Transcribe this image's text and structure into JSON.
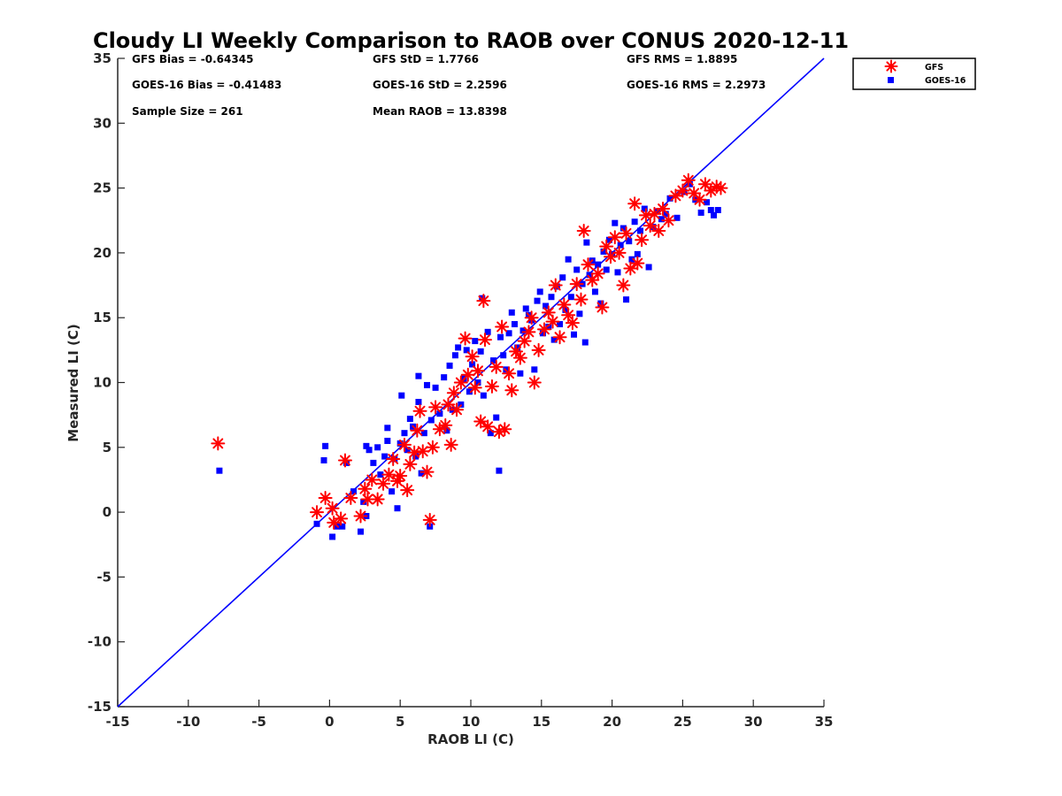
{
  "chart_data": {
    "type": "scatter",
    "title": "Cloudy LI Weekly Comparison to RAOB over CONUS 2020-12-11",
    "xlabel": "RAOB LI (C)",
    "ylabel": "Measured LI (C)",
    "xlim": [
      -15,
      35
    ],
    "ylim": [
      -15,
      35
    ],
    "xticks": [
      -15,
      -10,
      -5,
      0,
      5,
      10,
      15,
      20,
      25,
      30,
      35
    ],
    "yticks": [
      -15,
      -10,
      -5,
      0,
      5,
      10,
      15,
      20,
      25,
      30,
      35
    ],
    "grid": false,
    "legend_position": "top-right-outside",
    "reference_line": {
      "x": [
        -15,
        35
      ],
      "y": [
        -15,
        35
      ],
      "color": "#0000ff"
    },
    "stats": {
      "gfs_bias": "GFS Bias = -0.64345",
      "goes_bias": "GOES-16 Bias = -0.41483",
      "sample_size": "Sample Size = 261",
      "gfs_std": "GFS StD = 1.7766",
      "goes_std": "GOES-16 StD = 2.2596",
      "mean_raob": "Mean RAOB = 13.8398",
      "gfs_rms": "GFS RMS = 1.8895",
      "goes_rms": "GOES-16 RMS = 2.2973"
    },
    "series": [
      {
        "name": "GFS",
        "marker": "asterisk",
        "color": "#ff0000",
        "points": [
          [
            -7.9,
            5.3
          ],
          [
            -0.9,
            0.0
          ],
          [
            -0.3,
            1.1
          ],
          [
            0.2,
            0.3
          ],
          [
            0.3,
            -0.8
          ],
          [
            0.8,
            -0.5
          ],
          [
            1.1,
            4.0
          ],
          [
            1.5,
            1.1
          ],
          [
            2.2,
            -0.3
          ],
          [
            2.5,
            1.8
          ],
          [
            2.7,
            1.0
          ],
          [
            3.0,
            2.5
          ],
          [
            3.4,
            1.0
          ],
          [
            3.8,
            2.2
          ],
          [
            4.2,
            2.9
          ],
          [
            4.5,
            4.1
          ],
          [
            4.8,
            2.4
          ],
          [
            5.0,
            2.8
          ],
          [
            5.3,
            5.2
          ],
          [
            5.5,
            1.7
          ],
          [
            5.7,
            3.7
          ],
          [
            6.0,
            4.6
          ],
          [
            6.2,
            6.3
          ],
          [
            6.4,
            7.8
          ],
          [
            6.6,
            4.7
          ],
          [
            6.9,
            3.1
          ],
          [
            7.1,
            -0.6
          ],
          [
            7.3,
            5.0
          ],
          [
            7.5,
            8.1
          ],
          [
            7.8,
            6.4
          ],
          [
            8.2,
            6.7
          ],
          [
            8.4,
            8.3
          ],
          [
            8.6,
            5.2
          ],
          [
            8.8,
            9.2
          ],
          [
            9.0,
            7.9
          ],
          [
            9.3,
            10.0
          ],
          [
            9.6,
            13.4
          ],
          [
            9.8,
            10.6
          ],
          [
            10.1,
            12.0
          ],
          [
            10.3,
            9.6
          ],
          [
            10.5,
            10.9
          ],
          [
            10.7,
            7.0
          ],
          [
            10.9,
            16.3
          ],
          [
            11.0,
            13.3
          ],
          [
            11.2,
            6.6
          ],
          [
            11.5,
            9.7
          ],
          [
            11.8,
            11.2
          ],
          [
            12.0,
            6.2
          ],
          [
            12.2,
            14.3
          ],
          [
            12.4,
            6.4
          ],
          [
            12.7,
            10.7
          ],
          [
            12.9,
            9.4
          ],
          [
            13.2,
            12.4
          ],
          [
            13.5,
            11.9
          ],
          [
            13.8,
            13.2
          ],
          [
            14.1,
            13.9
          ],
          [
            14.3,
            15.0
          ],
          [
            14.5,
            10.0
          ],
          [
            14.8,
            12.5
          ],
          [
            15.2,
            14.1
          ],
          [
            15.5,
            15.4
          ],
          [
            15.8,
            14.7
          ],
          [
            16.0,
            17.5
          ],
          [
            16.3,
            13.5
          ],
          [
            16.6,
            16.0
          ],
          [
            16.9,
            15.2
          ],
          [
            17.2,
            14.6
          ],
          [
            17.5,
            17.6
          ],
          [
            17.8,
            16.4
          ],
          [
            18.0,
            21.7
          ],
          [
            18.3,
            19.1
          ],
          [
            18.6,
            17.9
          ],
          [
            19.0,
            18.4
          ],
          [
            19.3,
            15.8
          ],
          [
            19.6,
            20.5
          ],
          [
            19.9,
            19.7
          ],
          [
            20.2,
            21.2
          ],
          [
            20.5,
            20.0
          ],
          [
            20.8,
            17.5
          ],
          [
            21.0,
            21.5
          ],
          [
            21.3,
            18.8
          ],
          [
            21.6,
            23.8
          ],
          [
            21.8,
            19.2
          ],
          [
            22.1,
            21.0
          ],
          [
            22.4,
            22.9
          ],
          [
            22.7,
            22.1
          ],
          [
            23.0,
            23.0
          ],
          [
            23.3,
            21.7
          ],
          [
            23.6,
            23.4
          ],
          [
            24.0,
            22.5
          ],
          [
            24.5,
            24.4
          ],
          [
            25.0,
            24.8
          ],
          [
            25.4,
            25.6
          ],
          [
            25.8,
            24.6
          ],
          [
            26.2,
            24.1
          ],
          [
            26.6,
            25.3
          ],
          [
            27.0,
            24.8
          ],
          [
            27.4,
            25.1
          ],
          [
            27.7,
            25.0
          ]
        ]
      },
      {
        "name": "GOES-16",
        "marker": "square",
        "color": "#0000ff",
        "points": [
          [
            -7.8,
            3.2
          ],
          [
            -0.9,
            -0.9
          ],
          [
            -0.3,
            5.1
          ],
          [
            -0.4,
            4.0
          ],
          [
            0.2,
            -1.9
          ],
          [
            0.5,
            -1.1
          ],
          [
            0.9,
            -1.1
          ],
          [
            1.2,
            3.8
          ],
          [
            1.7,
            1.6
          ],
          [
            2.2,
            -1.5
          ],
          [
            2.4,
            0.8
          ],
          [
            2.6,
            -0.3
          ],
          [
            2.6,
            5.1
          ],
          [
            2.8,
            4.8
          ],
          [
            3.1,
            3.8
          ],
          [
            3.4,
            5.0
          ],
          [
            3.6,
            2.9
          ],
          [
            3.9,
            4.3
          ],
          [
            4.1,
            6.5
          ],
          [
            4.1,
            5.5
          ],
          [
            4.4,
            1.6
          ],
          [
            4.6,
            4.1
          ],
          [
            4.8,
            0.3
          ],
          [
            5.0,
            5.3
          ],
          [
            5.1,
            9.0
          ],
          [
            5.3,
            6.1
          ],
          [
            5.5,
            4.8
          ],
          [
            5.7,
            7.2
          ],
          [
            5.9,
            6.6
          ],
          [
            6.1,
            4.3
          ],
          [
            6.3,
            8.5
          ],
          [
            6.3,
            10.5
          ],
          [
            6.5,
            3.0
          ],
          [
            6.7,
            6.1
          ],
          [
            6.9,
            9.8
          ],
          [
            7.1,
            -1.1
          ],
          [
            7.2,
            7.1
          ],
          [
            7.5,
            9.6
          ],
          [
            7.8,
            7.6
          ],
          [
            8.1,
            10.4
          ],
          [
            8.3,
            6.3
          ],
          [
            8.5,
            11.3
          ],
          [
            8.7,
            7.9
          ],
          [
            8.9,
            12.1
          ],
          [
            9.1,
            12.7
          ],
          [
            9.3,
            8.3
          ],
          [
            9.5,
            10.3
          ],
          [
            9.7,
            12.5
          ],
          [
            9.9,
            9.3
          ],
          [
            10.1,
            11.4
          ],
          [
            10.3,
            13.2
          ],
          [
            10.5,
            10.0
          ],
          [
            10.7,
            12.4
          ],
          [
            10.8,
            16.5
          ],
          [
            10.9,
            9.0
          ],
          [
            11.2,
            13.9
          ],
          [
            11.4,
            6.1
          ],
          [
            11.6,
            11.7
          ],
          [
            11.8,
            7.3
          ],
          [
            12.0,
            3.2
          ],
          [
            12.1,
            13.5
          ],
          [
            12.3,
            12.1
          ],
          [
            12.5,
            11.0
          ],
          [
            12.7,
            13.8
          ],
          [
            12.9,
            15.4
          ],
          [
            13.1,
            14.5
          ],
          [
            13.3,
            12.7
          ],
          [
            13.5,
            10.7
          ],
          [
            13.7,
            14.0
          ],
          [
            13.9,
            15.7
          ],
          [
            14.1,
            15.2
          ],
          [
            14.3,
            14.8
          ],
          [
            14.5,
            11.0
          ],
          [
            14.7,
            16.3
          ],
          [
            14.9,
            17.0
          ],
          [
            15.1,
            13.8
          ],
          [
            15.3,
            15.9
          ],
          [
            15.5,
            14.3
          ],
          [
            15.7,
            16.6
          ],
          [
            15.9,
            13.3
          ],
          [
            16.1,
            17.4
          ],
          [
            16.3,
            14.5
          ],
          [
            16.5,
            18.1
          ],
          [
            16.7,
            15.6
          ],
          [
            16.9,
            19.5
          ],
          [
            17.1,
            16.6
          ],
          [
            17.3,
            13.7
          ],
          [
            17.5,
            18.7
          ],
          [
            17.7,
            15.3
          ],
          [
            17.9,
            17.6
          ],
          [
            18.1,
            13.1
          ],
          [
            18.2,
            20.8
          ],
          [
            18.4,
            18.3
          ],
          [
            18.6,
            19.4
          ],
          [
            18.8,
            17.0
          ],
          [
            19.0,
            19.1
          ],
          [
            19.2,
            16.1
          ],
          [
            19.4,
            20.1
          ],
          [
            19.6,
            18.7
          ],
          [
            19.8,
            21.0
          ],
          [
            20.0,
            19.9
          ],
          [
            20.2,
            22.3
          ],
          [
            20.4,
            18.5
          ],
          [
            20.6,
            20.6
          ],
          [
            20.8,
            21.9
          ],
          [
            21.0,
            16.4
          ],
          [
            21.2,
            20.9
          ],
          [
            21.4,
            19.5
          ],
          [
            21.6,
            22.4
          ],
          [
            21.8,
            19.9
          ],
          [
            22.0,
            21.7
          ],
          [
            22.3,
            23.4
          ],
          [
            22.6,
            18.9
          ],
          [
            22.9,
            22.0
          ],
          [
            23.2,
            23.2
          ],
          [
            23.5,
            22.6
          ],
          [
            23.8,
            23.0
          ],
          [
            24.1,
            24.2
          ],
          [
            24.6,
            22.7
          ],
          [
            25.1,
            24.7
          ],
          [
            25.5,
            25.3
          ],
          [
            25.9,
            24.1
          ],
          [
            26.3,
            23.1
          ],
          [
            26.7,
            23.9
          ],
          [
            27.0,
            23.3
          ],
          [
            27.2,
            22.9
          ],
          [
            27.5,
            23.3
          ]
        ]
      }
    ]
  }
}
